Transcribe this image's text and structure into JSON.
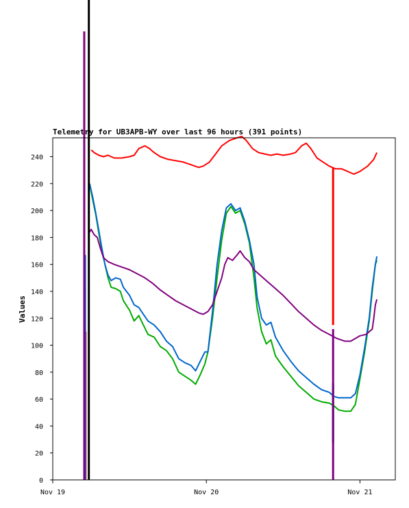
{
  "chart_data": {
    "type": "line",
    "title": "Telemetry for UB3APB-WY over last 96 hours (391 points)",
    "ylabel": "Values",
    "xlabel": "",
    "ylim": [
      0,
      254
    ],
    "xlim": [
      0,
      2.23
    ],
    "yticks": [
      0,
      20,
      40,
      60,
      80,
      100,
      120,
      140,
      160,
      180,
      200,
      220,
      240
    ],
    "xticks": [
      {
        "value": 0,
        "label": "Nov 19"
      },
      {
        "value": 1,
        "label": "Nov 20"
      },
      {
        "value": 2,
        "label": "Nov 21"
      }
    ],
    "grid": false,
    "series": [
      {
        "color": "#ff0000",
        "spikes": [
          [
            0.213,
            0,
            110
          ],
          [
            1.825,
            115,
            232
          ]
        ],
        "points": [
          [
            0.25,
            245
          ],
          [
            0.27,
            243
          ],
          [
            0.3,
            241
          ],
          [
            0.33,
            240
          ],
          [
            0.36,
            241
          ],
          [
            0.4,
            239
          ],
          [
            0.45,
            239
          ],
          [
            0.5,
            240
          ],
          [
            0.53,
            241
          ],
          [
            0.56,
            246
          ],
          [
            0.6,
            248
          ],
          [
            0.63,
            246
          ],
          [
            0.66,
            243
          ],
          [
            0.7,
            240
          ],
          [
            0.75,
            238
          ],
          [
            0.8,
            237
          ],
          [
            0.85,
            236
          ],
          [
            0.9,
            234
          ],
          [
            0.95,
            232
          ],
          [
            0.98,
            233
          ],
          [
            1.02,
            236
          ],
          [
            1.06,
            242
          ],
          [
            1.1,
            248
          ],
          [
            1.15,
            252
          ],
          [
            1.2,
            254
          ],
          [
            1.23,
            255
          ],
          [
            1.26,
            252
          ],
          [
            1.3,
            246
          ],
          [
            1.34,
            243
          ],
          [
            1.38,
            242
          ],
          [
            1.42,
            241
          ],
          [
            1.46,
            242
          ],
          [
            1.5,
            241
          ],
          [
            1.55,
            242
          ],
          [
            1.58,
            243
          ],
          [
            1.62,
            248
          ],
          [
            1.65,
            250
          ],
          [
            1.68,
            246
          ],
          [
            1.72,
            239
          ],
          [
            1.76,
            236
          ],
          [
            1.8,
            233
          ],
          [
            1.84,
            231
          ],
          [
            1.88,
            231
          ],
          [
            1.92,
            229
          ],
          [
            1.96,
            227
          ],
          [
            2.0,
            229
          ],
          [
            2.05,
            233
          ],
          [
            2.09,
            238
          ],
          [
            2.11,
            243
          ]
        ]
      },
      {
        "color": "#00aa00",
        "spikes": [
          [
            0.21,
            0,
            142
          ],
          [
            1.825,
            27,
            70
          ]
        ],
        "points": [
          [
            0.24,
            220
          ],
          [
            0.26,
            208
          ],
          [
            0.28,
            197
          ],
          [
            0.3,
            183
          ],
          [
            0.32,
            170
          ],
          [
            0.34,
            160
          ],
          [
            0.36,
            150
          ],
          [
            0.38,
            143
          ],
          [
            0.41,
            142
          ],
          [
            0.44,
            140
          ],
          [
            0.46,
            133
          ],
          [
            0.5,
            126
          ],
          [
            0.53,
            118
          ],
          [
            0.56,
            122
          ],
          [
            0.59,
            115
          ],
          [
            0.62,
            108
          ],
          [
            0.66,
            106
          ],
          [
            0.7,
            99
          ],
          [
            0.74,
            96
          ],
          [
            0.78,
            90
          ],
          [
            0.82,
            80
          ],
          [
            0.86,
            77
          ],
          [
            0.9,
            74
          ],
          [
            0.93,
            71
          ],
          [
            0.96,
            78
          ],
          [
            0.99,
            86
          ],
          [
            1.01,
            95
          ],
          [
            1.04,
            120
          ],
          [
            1.07,
            150
          ],
          [
            1.1,
            178
          ],
          [
            1.13,
            198
          ],
          [
            1.16,
            203
          ],
          [
            1.19,
            198
          ],
          [
            1.22,
            200
          ],
          [
            1.25,
            190
          ],
          [
            1.28,
            176
          ],
          [
            1.31,
            150
          ],
          [
            1.33,
            128
          ],
          [
            1.36,
            110
          ],
          [
            1.39,
            101
          ],
          [
            1.42,
            104
          ],
          [
            1.45,
            92
          ],
          [
            1.5,
            84
          ],
          [
            1.55,
            77
          ],
          [
            1.6,
            70
          ],
          [
            1.65,
            65
          ],
          [
            1.7,
            60
          ],
          [
            1.75,
            58
          ],
          [
            1.8,
            57
          ],
          [
            1.83,
            55
          ],
          [
            1.86,
            52
          ],
          [
            1.9,
            51
          ],
          [
            1.94,
            51
          ],
          [
            1.97,
            56
          ],
          [
            2.0,
            75
          ],
          [
            2.03,
            95
          ],
          [
            2.06,
            118
          ],
          [
            2.08,
            140
          ],
          [
            2.1,
            160
          ],
          [
            2.11,
            163
          ]
        ]
      },
      {
        "color": "#0066cc",
        "spikes": [
          [
            0.21,
            0,
            167
          ],
          [
            1.825,
            28,
            72
          ]
        ],
        "points": [
          [
            0.24,
            220
          ],
          [
            0.26,
            210
          ],
          [
            0.28,
            198
          ],
          [
            0.3,
            185
          ],
          [
            0.32,
            172
          ],
          [
            0.34,
            160
          ],
          [
            0.36,
            152
          ],
          [
            0.38,
            148
          ],
          [
            0.41,
            150
          ],
          [
            0.44,
            149
          ],
          [
            0.46,
            143
          ],
          [
            0.5,
            137
          ],
          [
            0.53,
            130
          ],
          [
            0.56,
            128
          ],
          [
            0.59,
            123
          ],
          [
            0.62,
            118
          ],
          [
            0.66,
            115
          ],
          [
            0.7,
            110
          ],
          [
            0.74,
            103
          ],
          [
            0.78,
            99
          ],
          [
            0.82,
            90
          ],
          [
            0.86,
            87
          ],
          [
            0.9,
            85
          ],
          [
            0.93,
            81
          ],
          [
            0.96,
            88
          ],
          [
            0.99,
            95
          ],
          [
            1.01,
            95
          ],
          [
            1.04,
            125
          ],
          [
            1.07,
            160
          ],
          [
            1.1,
            185
          ],
          [
            1.13,
            202
          ],
          [
            1.16,
            205
          ],
          [
            1.19,
            200
          ],
          [
            1.22,
            202
          ],
          [
            1.25,
            192
          ],
          [
            1.28,
            178
          ],
          [
            1.31,
            160
          ],
          [
            1.33,
            136
          ],
          [
            1.36,
            120
          ],
          [
            1.39,
            115
          ],
          [
            1.42,
            117
          ],
          [
            1.45,
            106
          ],
          [
            1.5,
            96
          ],
          [
            1.55,
            88
          ],
          [
            1.6,
            81
          ],
          [
            1.65,
            76
          ],
          [
            1.7,
            71
          ],
          [
            1.75,
            67
          ],
          [
            1.8,
            65
          ],
          [
            1.83,
            62
          ],
          [
            1.86,
            61
          ],
          [
            1.9,
            61
          ],
          [
            1.94,
            61
          ],
          [
            1.97,
            64
          ],
          [
            2.0,
            78
          ],
          [
            2.03,
            98
          ],
          [
            2.06,
            120
          ],
          [
            2.08,
            143
          ],
          [
            2.1,
            160
          ],
          [
            2.11,
            166
          ]
        ]
      },
      {
        "color": "#800080",
        "spikes": [
          [
            0.205,
            0,
            333
          ],
          [
            1.825,
            0,
            112
          ]
        ],
        "points": [
          [
            0.24,
            184
          ],
          [
            0.25,
            186
          ],
          [
            0.27,
            182
          ],
          [
            0.29,
            180
          ],
          [
            0.31,
            172
          ],
          [
            0.33,
            165
          ],
          [
            0.36,
            162
          ],
          [
            0.4,
            160
          ],
          [
            0.45,
            158
          ],
          [
            0.5,
            156
          ],
          [
            0.55,
            153
          ],
          [
            0.6,
            150
          ],
          [
            0.65,
            146
          ],
          [
            0.7,
            141
          ],
          [
            0.75,
            137
          ],
          [
            0.8,
            133
          ],
          [
            0.85,
            130
          ],
          [
            0.9,
            127
          ],
          [
            0.95,
            124
          ],
          [
            0.98,
            123
          ],
          [
            1.01,
            125
          ],
          [
            1.04,
            130
          ],
          [
            1.07,
            140
          ],
          [
            1.1,
            150
          ],
          [
            1.12,
            160
          ],
          [
            1.14,
            165
          ],
          [
            1.17,
            163
          ],
          [
            1.2,
            167
          ],
          [
            1.22,
            170
          ],
          [
            1.25,
            165
          ],
          [
            1.28,
            162
          ],
          [
            1.31,
            156
          ],
          [
            1.35,
            152
          ],
          [
            1.4,
            147
          ],
          [
            1.45,
            142
          ],
          [
            1.5,
            137
          ],
          [
            1.55,
            131
          ],
          [
            1.6,
            125
          ],
          [
            1.65,
            120
          ],
          [
            1.7,
            115
          ],
          [
            1.75,
            111
          ],
          [
            1.8,
            108
          ],
          [
            1.85,
            105
          ],
          [
            1.9,
            103
          ],
          [
            1.94,
            103
          ],
          [
            1.97,
            105
          ],
          [
            2.0,
            107
          ],
          [
            2.04,
            108
          ],
          [
            2.08,
            112
          ],
          [
            2.09,
            120
          ],
          [
            2.1,
            130
          ],
          [
            2.11,
            134
          ]
        ]
      },
      {
        "color": "#000000",
        "spikes": [
          [
            0.235,
            0,
            360
          ]
        ],
        "points": []
      }
    ]
  }
}
